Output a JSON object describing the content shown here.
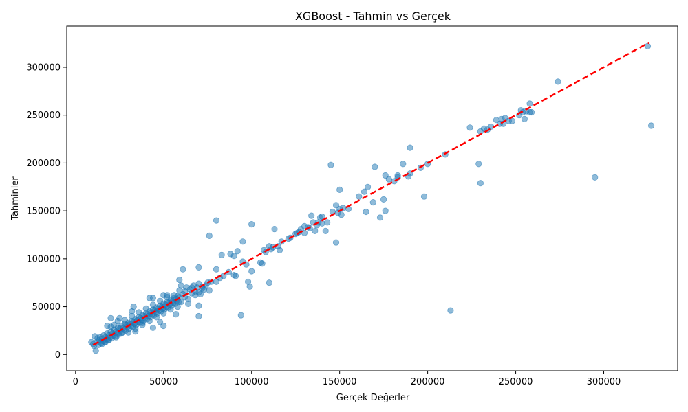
{
  "chart_data": {
    "type": "scatter",
    "title": "XGBoost - Tahmin vs Gerçek",
    "xlabel": "Gerçek Değerler",
    "ylabel": "Tahminler",
    "xlim": [
      -5000,
      342000
    ],
    "ylim": [
      -17000,
      343000
    ],
    "xticks": [
      0,
      50000,
      100000,
      150000,
      200000,
      250000,
      300000
    ],
    "xtick_labels": [
      "0",
      "50000",
      "100000",
      "150000",
      "200000",
      "250000",
      "300000"
    ],
    "yticks": [
      0,
      50000,
      100000,
      150000,
      200000,
      250000,
      300000
    ],
    "ytick_labels": [
      "0",
      "50000",
      "100000",
      "150000",
      "200000",
      "250000",
      "300000"
    ],
    "grid": false,
    "legend": false,
    "colors": {
      "points": "#1f77b4",
      "reference_line": "#ff0000"
    },
    "reference_line": {
      "style": "dashed",
      "from": [
        10000,
        10000
      ],
      "to": [
        326000,
        326000
      ]
    },
    "points": [
      [
        9000,
        13000
      ],
      [
        10000,
        11000
      ],
      [
        10500,
        9000
      ],
      [
        11000,
        19000
      ],
      [
        11500,
        4000
      ],
      [
        12000,
        13000
      ],
      [
        12500,
        17000
      ],
      [
        13000,
        10000
      ],
      [
        13500,
        15000
      ],
      [
        14000,
        18000
      ],
      [
        14500,
        12000
      ],
      [
        15000,
        16000
      ],
      [
        15500,
        14000
      ],
      [
        16000,
        20000
      ],
      [
        16500,
        13000
      ],
      [
        17000,
        18000
      ],
      [
        17500,
        16000
      ],
      [
        18000,
        22000
      ],
      [
        18500,
        15000
      ],
      [
        19000,
        20000
      ],
      [
        19500,
        18000
      ],
      [
        20000,
        24000
      ],
      [
        20500,
        17000
      ],
      [
        21000,
        22000
      ],
      [
        21500,
        20000
      ],
      [
        22000,
        26000
      ],
      [
        22500,
        19000
      ],
      [
        23000,
        24000
      ],
      [
        23500,
        22000
      ],
      [
        24000,
        28000
      ],
      [
        24500,
        21000
      ],
      [
        25000,
        27000
      ],
      [
        25500,
        25000
      ],
      [
        26000,
        30000
      ],
      [
        26500,
        23000
      ],
      [
        27000,
        28000
      ],
      [
        27500,
        26000
      ],
      [
        28000,
        32000
      ],
      [
        28500,
        25000
      ],
      [
        29000,
        31000
      ],
      [
        29500,
        29000
      ],
      [
        30000,
        33000
      ],
      [
        30500,
        27000
      ],
      [
        31000,
        32000
      ],
      [
        31500,
        30000
      ],
      [
        32000,
        35000
      ],
      [
        32500,
        29000
      ],
      [
        33000,
        34000
      ],
      [
        33500,
        32000
      ],
      [
        34000,
        37000
      ],
      [
        34500,
        31000
      ],
      [
        35000,
        36000
      ],
      [
        35500,
        34000
      ],
      [
        36000,
        39000
      ],
      [
        36500,
        33000
      ],
      [
        37000,
        38000
      ],
      [
        37500,
        36000
      ],
      [
        38000,
        41000
      ],
      [
        38500,
        35000
      ],
      [
        39000,
        40000
      ],
      [
        39500,
        38000
      ],
      [
        40000,
        43000
      ],
      [
        40500,
        37000
      ],
      [
        41000,
        42000
      ],
      [
        41500,
        40000
      ],
      [
        42000,
        45000
      ],
      [
        42500,
        39000
      ],
      [
        43000,
        44000
      ],
      [
        43500,
        42000
      ],
      [
        44000,
        47000
      ],
      [
        44500,
        41000
      ],
      [
        45000,
        46000
      ],
      [
        45500,
        44000
      ],
      [
        46000,
        49000
      ],
      [
        46500,
        43000
      ],
      [
        47000,
        48000
      ],
      [
        47500,
        46000
      ],
      [
        48000,
        51000
      ],
      [
        48500,
        45000
      ],
      [
        49000,
        50000
      ],
      [
        49500,
        48000
      ],
      [
        50000,
        53000
      ],
      [
        50500,
        47000
      ],
      [
        51000,
        52000
      ],
      [
        51500,
        50000
      ],
      [
        52000,
        55000
      ],
      [
        52500,
        49000
      ],
      [
        53000,
        54000
      ],
      [
        53500,
        52000
      ],
      [
        54000,
        57000
      ],
      [
        54500,
        51000
      ],
      [
        55000,
        56000
      ],
      [
        55500,
        54000
      ],
      [
        56000,
        59000
      ],
      [
        56500,
        53000
      ],
      [
        57000,
        58000
      ],
      [
        57500,
        56000
      ],
      [
        58000,
        61000
      ],
      [
        58500,
        55000
      ],
      [
        59000,
        60000
      ],
      [
        20000,
        29000
      ],
      [
        22000,
        31000
      ],
      [
        24000,
        35000
      ],
      [
        26000,
        22000
      ],
      [
        28000,
        36000
      ],
      [
        30000,
        23000
      ],
      [
        32000,
        40000
      ],
      [
        34000,
        27000
      ],
      [
        36000,
        44000
      ],
      [
        38000,
        31000
      ],
      [
        40000,
        48000
      ],
      [
        42000,
        35000
      ],
      [
        44000,
        52000
      ],
      [
        46000,
        39000
      ],
      [
        48000,
        56000
      ],
      [
        50000,
        43000
      ],
      [
        52000,
        60000
      ],
      [
        54000,
        47000
      ],
      [
        56000,
        62000
      ],
      [
        58000,
        50000
      ],
      [
        18000,
        30000
      ],
      [
        20000,
        38000
      ],
      [
        25000,
        38000
      ],
      [
        32000,
        45000
      ],
      [
        33000,
        50000
      ],
      [
        42000,
        59000
      ],
      [
        44000,
        59000
      ],
      [
        50000,
        62000
      ],
      [
        52000,
        62000
      ],
      [
        59000,
        67000
      ],
      [
        34000,
        24000
      ],
      [
        38000,
        33000
      ],
      [
        44000,
        28000
      ],
      [
        48000,
        34000
      ],
      [
        50000,
        30000
      ],
      [
        57000,
        42000
      ],
      [
        15000,
        11000
      ],
      [
        17000,
        13000
      ],
      [
        19000,
        15000
      ],
      [
        23000,
        18000
      ],
      [
        60000,
        72000
      ],
      [
        61000,
        63000
      ],
      [
        62000,
        66000
      ],
      [
        63000,
        70000
      ],
      [
        64000,
        58000
      ],
      [
        65000,
        68000
      ],
      [
        66000,
        64000
      ],
      [
        67000,
        72000
      ],
      [
        68000,
        62000
      ],
      [
        69000,
        70000
      ],
      [
        70000,
        74000
      ],
      [
        71000,
        63000
      ],
      [
        72000,
        71000
      ],
      [
        73000,
        68000
      ],
      [
        74000,
        72000
      ],
      [
        75000,
        75000
      ],
      [
        76000,
        67000
      ],
      [
        77000,
        76000
      ],
      [
        60000,
        55000
      ],
      [
        62000,
        60000
      ],
      [
        64000,
        53000
      ],
      [
        66000,
        70000
      ],
      [
        68000,
        66000
      ],
      [
        70000,
        65000
      ],
      [
        72000,
        69000
      ],
      [
        59000,
        78000
      ],
      [
        61000,
        89000
      ],
      [
        70000,
        91000
      ],
      [
        70000,
        51000
      ],
      [
        70000,
        40000
      ],
      [
        76000,
        124000
      ],
      [
        80000,
        140000
      ],
      [
        80000,
        89000
      ],
      [
        80000,
        76000
      ],
      [
        82000,
        80000
      ],
      [
        83000,
        104000
      ],
      [
        84000,
        82000
      ],
      [
        87000,
        86000
      ],
      [
        88000,
        105000
      ],
      [
        90000,
        103000
      ],
      [
        90000,
        83000
      ],
      [
        91000,
        82000
      ],
      [
        92000,
        108000
      ],
      [
        94000,
        41000
      ],
      [
        95000,
        118000
      ],
      [
        95000,
        97000
      ],
      [
        97000,
        94000
      ],
      [
        98000,
        76000
      ],
      [
        99000,
        71000
      ],
      [
        100000,
        136000
      ],
      [
        100000,
        87000
      ],
      [
        105000,
        96000
      ],
      [
        106000,
        95000
      ],
      [
        107000,
        109000
      ],
      [
        108000,
        107000
      ],
      [
        110000,
        113000
      ],
      [
        110000,
        75000
      ],
      [
        111000,
        110000
      ],
      [
        112000,
        112000
      ],
      [
        113000,
        131000
      ],
      [
        115000,
        113000
      ],
      [
        116000,
        109000
      ],
      [
        117000,
        118000
      ],
      [
        121000,
        121000
      ],
      [
        122000,
        122000
      ],
      [
        125000,
        126000
      ],
      [
        126000,
        127000
      ],
      [
        127000,
        128000
      ],
      [
        128000,
        131000
      ],
      [
        130000,
        134000
      ],
      [
        130000,
        127000
      ],
      [
        132000,
        133000
      ],
      [
        133000,
        132000
      ],
      [
        134000,
        145000
      ],
      [
        135000,
        138000
      ],
      [
        136000,
        129000
      ],
      [
        137000,
        135000
      ],
      [
        138000,
        138000
      ],
      [
        139000,
        143000
      ],
      [
        140000,
        144000
      ],
      [
        140000,
        137000
      ],
      [
        142000,
        129000
      ],
      [
        143000,
        138000
      ],
      [
        145000,
        198000
      ],
      [
        146000,
        149000
      ],
      [
        148000,
        156000
      ],
      [
        148000,
        117000
      ],
      [
        149000,
        148000
      ],
      [
        150000,
        172000
      ],
      [
        150000,
        152000
      ],
      [
        151000,
        146000
      ],
      [
        152000,
        153000
      ],
      [
        155000,
        152000
      ],
      [
        161000,
        165000
      ],
      [
        164000,
        170000
      ],
      [
        165000,
        149000
      ],
      [
        166000,
        175000
      ],
      [
        169000,
        159000
      ],
      [
        170000,
        196000
      ],
      [
        173000,
        143000
      ],
      [
        175000,
        162000
      ],
      [
        176000,
        150000
      ],
      [
        176000,
        187000
      ],
      [
        178000,
        183000
      ],
      [
        181000,
        181000
      ],
      [
        183000,
        187000
      ],
      [
        183000,
        185000
      ],
      [
        186000,
        199000
      ],
      [
        189000,
        186000
      ],
      [
        190000,
        216000
      ],
      [
        190000,
        189000
      ],
      [
        196000,
        195000
      ],
      [
        198000,
        165000
      ],
      [
        200000,
        199000
      ],
      [
        210000,
        209000
      ],
      [
        213000,
        46000
      ],
      [
        224000,
        237000
      ],
      [
        229000,
        199000
      ],
      [
        230000,
        233000
      ],
      [
        230000,
        179000
      ],
      [
        232000,
        236000
      ],
      [
        234000,
        235000
      ],
      [
        236000,
        238000
      ],
      [
        239000,
        245000
      ],
      [
        241000,
        241000
      ],
      [
        242000,
        246000
      ],
      [
        243000,
        241000
      ],
      [
        244000,
        247000
      ],
      [
        246000,
        244000
      ],
      [
        248000,
        244000
      ],
      [
        252000,
        250000
      ],
      [
        253000,
        255000
      ],
      [
        254000,
        253000
      ],
      [
        255000,
        246000
      ],
      [
        256000,
        254000
      ],
      [
        258000,
        253000
      ],
      [
        258000,
        262000
      ],
      [
        259000,
        253000
      ],
      [
        274000,
        285000
      ],
      [
        295000,
        185000
      ],
      [
        325000,
        322000
      ],
      [
        327000,
        239000
      ]
    ]
  }
}
